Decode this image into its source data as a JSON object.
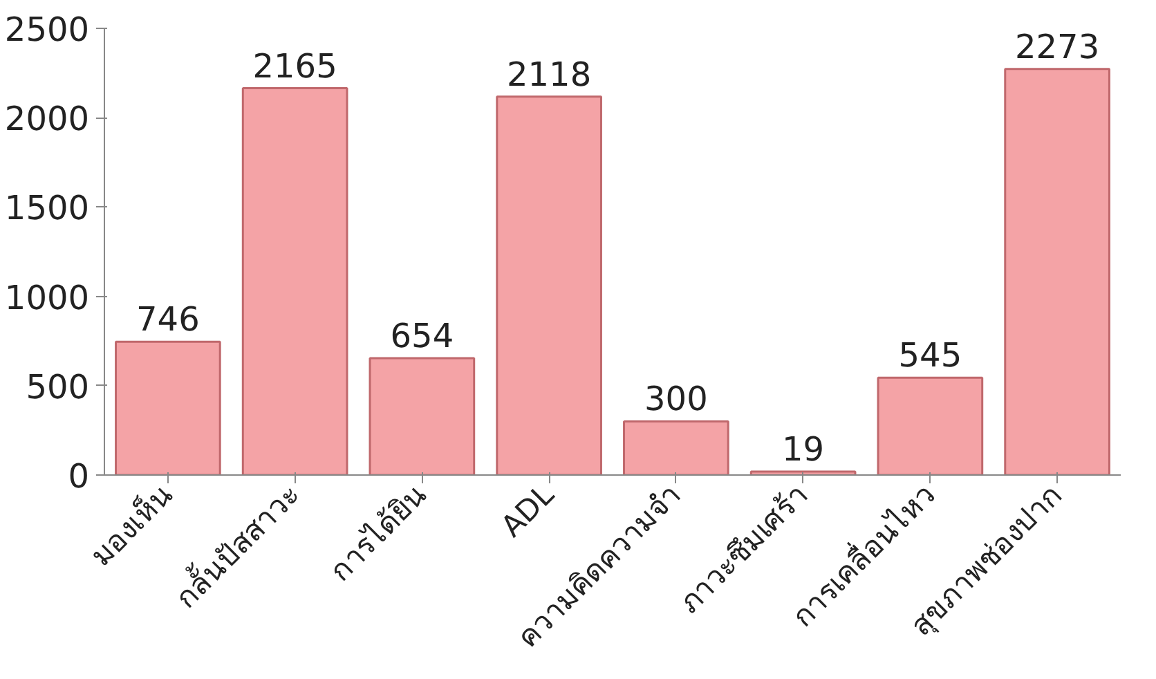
{
  "chart_data": {
    "type": "bar",
    "categories": [
      "มองเห็น",
      "กลั้นปัสสาวะ",
      "การได้ยิน",
      "ADL",
      "ความคิดความจำ",
      "ภาวะซึมเศร้า",
      "การเคลื่อนไหว",
      "สุขภาพช่องปาก"
    ],
    "values": [
      746,
      2165,
      654,
      2118,
      300,
      19,
      545,
      2273
    ],
    "color": "#f4a3a6",
    "ylim": [
      0,
      2500
    ],
    "yticks": [
      0,
      500,
      1000,
      1500,
      2000,
      2500
    ],
    "data_labels": true,
    "grid": false
  }
}
